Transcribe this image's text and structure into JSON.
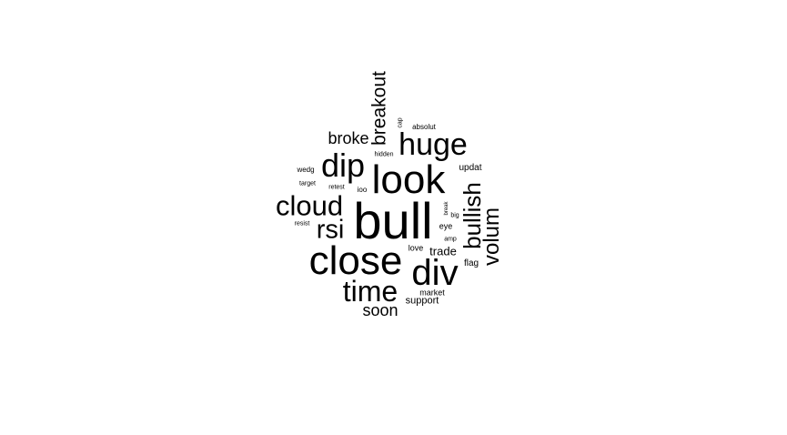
{
  "colors": {
    "background": "#ffffff",
    "text": "#000000"
  },
  "words": {
    "bull": "bull",
    "look": "look",
    "close": "close",
    "div": "div",
    "huge": "huge",
    "dip": "dip",
    "cloud": "cloud",
    "time": "time",
    "rsi": "rsi",
    "bullish": "bullish",
    "volum": "volum",
    "breakout": "breakout",
    "broke": "broke",
    "soon": "soon",
    "trade": "trade",
    "support": "support",
    "updat": "updat",
    "flag": "flag",
    "market": "market",
    "eye": "eye",
    "love": "love",
    "absolut": "absolut",
    "wedg": "wedg",
    "ioo": "ioo",
    "target": "target",
    "retest": "retest",
    "resist": "resist",
    "hidden": "hidden",
    "cap": "cap",
    "big": "big",
    "amp": "amp",
    "break": "break"
  }
}
